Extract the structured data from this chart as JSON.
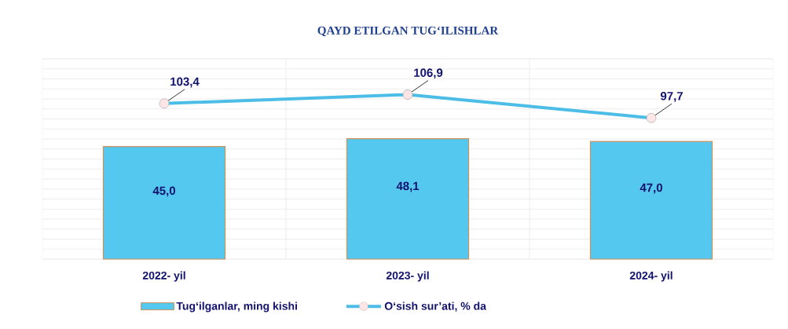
{
  "chart_data": {
    "type": "bar",
    "title": "QAYD ETILGAN TUG‘ILISHLAR",
    "categories": [
      "2022- yil",
      "2023- yil",
      "2024- yil"
    ],
    "series": [
      {
        "name": "Tug‘ilganlar, ming kishi",
        "color": "#55c8f0",
        "values": [
          45.0,
          48.1,
          47.0
        ],
        "value_labels": [
          "45,0",
          "48,1",
          "47,0"
        ]
      },
      {
        "name": "O‘sish sur’ati, % da",
        "type": "line",
        "axis": "y2",
        "color": "#4bbde6",
        "values": [
          103.4,
          106.9,
          97.7
        ],
        "value_labels": [
          "103,4",
          "106,9",
          "97,7"
        ]
      }
    ],
    "ylim": [
      0,
      80
    ],
    "y2lim": [
      42,
      121
    ],
    "grid": true,
    "legend": "bottom",
    "marker": "circle"
  }
}
